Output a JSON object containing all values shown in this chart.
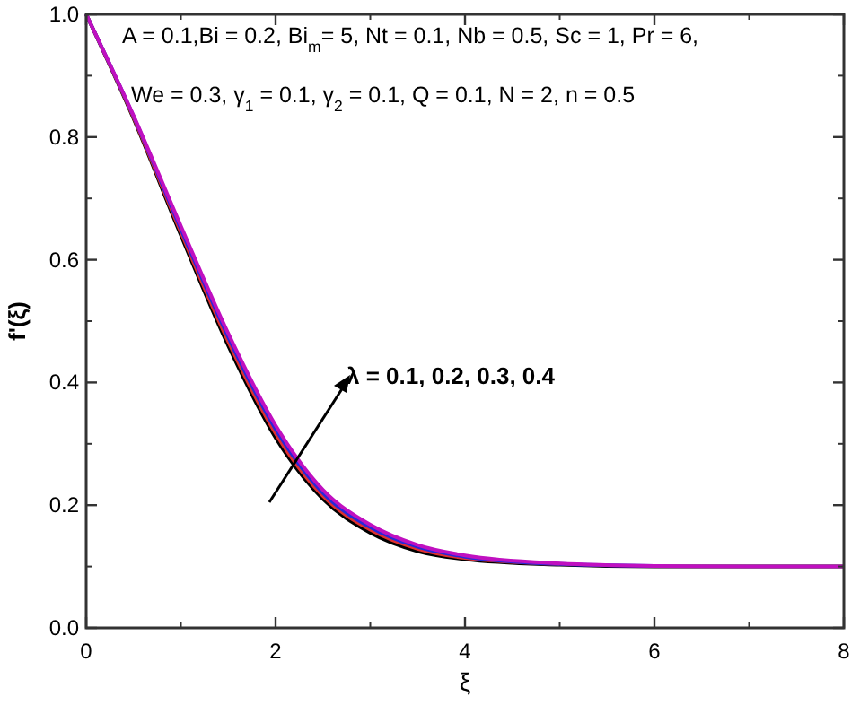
{
  "chart_data": {
    "type": "line",
    "xlabel": "ξ",
    "ylabel": "f'(ξ)",
    "x": [
      0,
      0.5,
      1,
      1.5,
      2,
      2.5,
      3,
      3.5,
      4,
      5,
      6,
      7,
      8
    ],
    "series": [
      {
        "color": "#000000",
        "values": [
          1.0,
          0.83,
          0.64,
          0.46,
          0.31,
          0.21,
          0.155,
          0.125,
          0.112,
          0.103,
          0.1,
          0.1,
          0.1
        ]
      },
      {
        "color": "#e03030",
        "values": [
          1.0,
          0.832,
          0.645,
          0.467,
          0.317,
          0.215,
          0.16,
          0.129,
          0.114,
          0.104,
          null,
          null,
          null
        ]
      },
      {
        "color": "#2828d8",
        "values": [
          1.0,
          0.834,
          0.65,
          0.474,
          0.324,
          0.22,
          0.164,
          0.132,
          0.116,
          0.104,
          0.101,
          null,
          null
        ]
      },
      {
        "color": "#c010c0",
        "values": [
          1.0,
          0.835,
          0.655,
          0.48,
          0.33,
          0.225,
          0.168,
          0.135,
          0.118,
          0.105,
          0.101,
          0.1,
          0.1
        ]
      }
    ],
    "xlim": [
      0,
      8
    ],
    "xticks": [
      0,
      2,
      4,
      6,
      8
    ],
    "ylim": [
      0,
      1
    ],
    "yticks": [
      {
        "value": 0,
        "label": "0.0"
      },
      0.2,
      0.4,
      0.6,
      0.8,
      {
        "value": 1,
        "label": "1.0"
      }
    ],
    "annotations": [
      "A = 0.1,Bi = 0.2, Bi$_{m}$= 5, Nt = 0.1, Nb = 0.5, Sc = 1, Pr = 6,",
      "We = 0.3, γ$_{1}$ = 0.1, γ$_{2}$ = 0.1, Q = 0.1, N = 2, n = 0.5",
      "λ = 0.1, 0.2, 0.3, 0.4"
    ],
    "grid": false,
    "marker": "none",
    "line_style": "solid"
  }
}
